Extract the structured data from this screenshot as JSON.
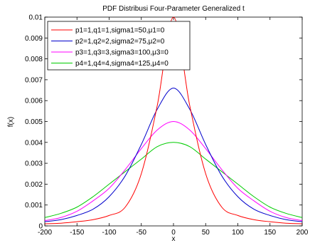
{
  "chart_data": {
    "type": "line",
    "title": "PDF Distribusi Four-Parameter Generalized t",
    "xlabel": "x",
    "ylabel": "f(x)",
    "xlim": [
      -200,
      200
    ],
    "ylim": [
      0,
      0.01
    ],
    "xticks": [
      "-200",
      "-150",
      "-100",
      "-50",
      "0",
      "50",
      "100",
      "150",
      "200"
    ],
    "yticks": [
      "0",
      "0.001",
      "0.002",
      "0.003",
      "0.004",
      "0.005",
      "0.006",
      "0.007",
      "0.008",
      "0.009",
      "0.01"
    ],
    "grid": false,
    "legend_position": "top-left",
    "x": [
      -200,
      -175,
      -150,
      -125,
      -100,
      -75,
      -50,
      -25,
      0,
      25,
      50,
      75,
      100,
      125,
      150,
      175,
      200
    ],
    "series": [
      {
        "name": "p1=1,q1=1,sigma1=50,μ1=0",
        "color": "#ff0000",
        "values": [
          0.0001,
          0.00013,
          0.0002,
          0.0003,
          0.0005,
          0.0009,
          0.0025,
          0.0058,
          0.01,
          0.0058,
          0.0025,
          0.0009,
          0.0005,
          0.0003,
          0.0002,
          0.00013,
          0.0001
        ]
      },
      {
        "name": "p2=1,q2=2,sigma2=75,μ2=0",
        "color": "#0000cc",
        "values": [
          0.0002,
          0.0003,
          0.0005,
          0.0008,
          0.0014,
          0.0024,
          0.0039,
          0.0056,
          0.0066,
          0.0056,
          0.0039,
          0.0024,
          0.0014,
          0.0008,
          0.0005,
          0.0003,
          0.0002
        ]
      },
      {
        "name": "p3=1,q3=3,sigma3=100,μ3=0",
        "color": "#ff00ff",
        "values": [
          0.00025,
          0.0004,
          0.0007,
          0.0012,
          0.0018,
          0.0027,
          0.0037,
          0.0046,
          0.005,
          0.0046,
          0.0037,
          0.0027,
          0.0018,
          0.0012,
          0.0007,
          0.0004,
          0.00025
        ]
      },
      {
        "name": "p4=1,q4=4,sigma4=125,μ4=0",
        "color": "#00cc00",
        "values": [
          0.0004,
          0.0006,
          0.0009,
          0.0014,
          0.002,
          0.0026,
          0.0032,
          0.0038,
          0.004,
          0.0038,
          0.0032,
          0.0026,
          0.002,
          0.0014,
          0.0009,
          0.0006,
          0.0004
        ]
      }
    ]
  }
}
